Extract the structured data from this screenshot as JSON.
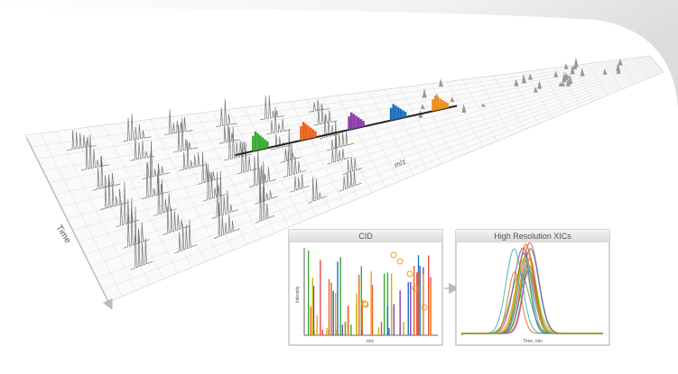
{
  "plane": {
    "time_label": "Time",
    "mz_label": "m/z"
  },
  "cid_panel": {
    "title": "CID",
    "y_label": "Intensity",
    "x_label": "m/z"
  },
  "xic_panel": {
    "title": "High Resolution XICs",
    "x_label": "Time, min"
  }
}
